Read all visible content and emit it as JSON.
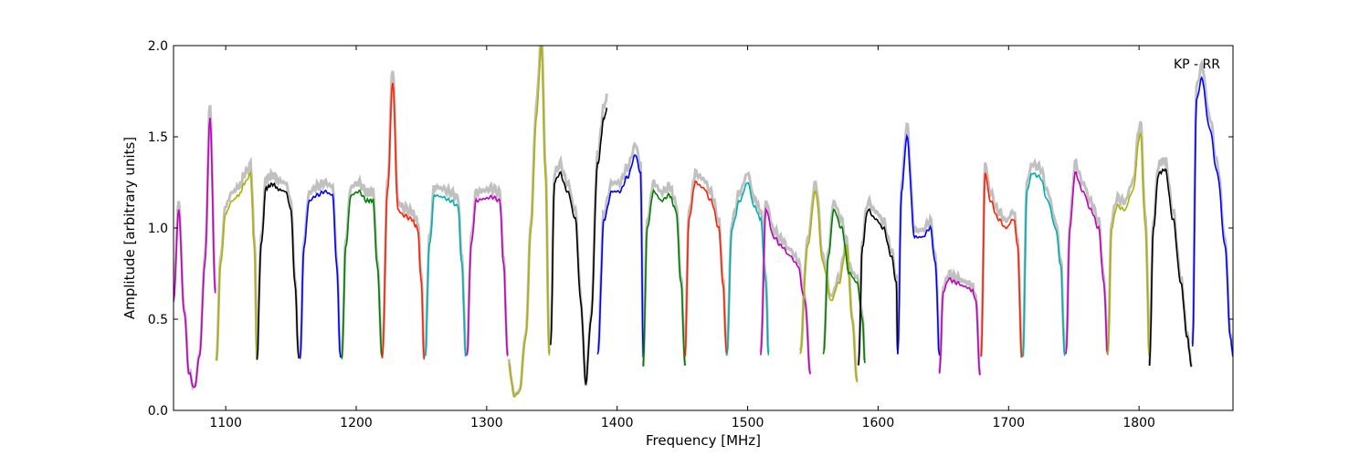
{
  "chart_data": {
    "type": "line",
    "title": "",
    "annotation": "KP - RR",
    "xlabel": "Frequency [MHz]",
    "ylabel": "Amplitude [arbitrary units]",
    "xlim": [
      1060,
      1872
    ],
    "ylim": [
      0.0,
      2.0
    ],
    "x_ticks": [
      1100,
      1200,
      1300,
      1400,
      1500,
      1600,
      1700,
      1800
    ],
    "y_ticks": [
      0.0,
      0.5,
      1.0,
      1.5,
      2.0
    ],
    "y_tick_labels": [
      "0.0",
      "0.5",
      "1.0",
      "1.5",
      "2.0"
    ],
    "grid": false,
    "background_color": "#c0c0c0",
    "band_colors": [
      "#0000ff",
      "#008000",
      "#ff2000",
      "#00b0b0",
      "#bf00bf",
      "#b0b000",
      "#000000"
    ],
    "bands": [
      {
        "range": [
          1060,
          1092
        ],
        "color": "#bf00bf",
        "x": [
          1060,
          1064,
          1068,
          1072,
          1076,
          1080,
          1084,
          1088,
          1092
        ],
        "y": [
          0.6,
          1.1,
          0.55,
          0.2,
          0.12,
          0.3,
          0.8,
          1.6,
          0.65
        ]
      },
      {
        "range": [
          1093,
          1124
        ],
        "color": "#b0b000",
        "x": [
          1093,
          1096,
          1100,
          1105,
          1110,
          1115,
          1119,
          1122,
          1124
        ],
        "y": [
          0.28,
          0.8,
          1.08,
          1.15,
          1.18,
          1.25,
          1.3,
          0.9,
          0.28
        ]
      },
      {
        "range": [
          1124,
          1156
        ],
        "color": "#000000",
        "x": [
          1124,
          1127,
          1131,
          1136,
          1141,
          1146,
          1150,
          1153,
          1156
        ],
        "y": [
          0.28,
          0.9,
          1.22,
          1.24,
          1.21,
          1.2,
          1.1,
          0.7,
          0.28
        ]
      },
      {
        "range": [
          1157,
          1188
        ],
        "color": "#0000ff",
        "x": [
          1157,
          1160,
          1164,
          1170,
          1176,
          1182,
          1185,
          1188
        ],
        "y": [
          0.28,
          0.9,
          1.15,
          1.18,
          1.2,
          1.18,
          0.8,
          0.28
        ]
      },
      {
        "range": [
          1189,
          1220
        ],
        "color": "#008000",
        "x": [
          1189,
          1192,
          1196,
          1202,
          1208,
          1213,
          1216,
          1220
        ],
        "y": [
          0.28,
          0.9,
          1.18,
          1.2,
          1.15,
          1.15,
          0.8,
          0.28
        ]
      },
      {
        "range": [
          1220,
          1252
        ],
        "color": "#ff2000",
        "x": [
          1220,
          1224,
          1228,
          1232,
          1236,
          1242,
          1247,
          1250,
          1252
        ],
        "y": [
          0.28,
          1.2,
          1.8,
          1.1,
          1.07,
          1.05,
          1.0,
          0.7,
          0.28
        ]
      },
      {
        "range": [
          1253,
          1284
        ],
        "color": "#00b0b0",
        "x": [
          1253,
          1256,
          1260,
          1266,
          1272,
          1278,
          1281,
          1284
        ],
        "y": [
          0.3,
          0.9,
          1.18,
          1.17,
          1.15,
          1.12,
          0.8,
          0.3
        ]
      },
      {
        "range": [
          1285,
          1316
        ],
        "color": "#bf00bf",
        "x": [
          1285,
          1288,
          1292,
          1298,
          1304,
          1310,
          1313,
          1316
        ],
        "y": [
          0.3,
          0.9,
          1.15,
          1.16,
          1.17,
          1.15,
          0.8,
          0.3
        ]
      },
      {
        "range": [
          1317,
          1348
        ],
        "color": "#b0b000",
        "x": [
          1317,
          1321,
          1325,
          1330,
          1334,
          1338,
          1342,
          1345,
          1348
        ],
        "y": [
          0.25,
          0.08,
          0.1,
          0.4,
          1.0,
          1.6,
          2.0,
          1.3,
          0.3
        ]
      },
      {
        "range": [
          1349,
          1392
        ],
        "color": "#000000",
        "x": [
          1349,
          1352,
          1356,
          1362,
          1368,
          1372,
          1376,
          1380,
          1385,
          1390,
          1392
        ],
        "y": [
          0.35,
          1.25,
          1.3,
          1.2,
          1.05,
          0.6,
          0.15,
          0.5,
          1.35,
          1.6,
          1.65
        ]
      },
      {
        "range": [
          1385,
          1420
        ],
        "color": "#0000ff",
        "x": [
          1385,
          1390,
          1396,
          1402,
          1408,
          1414,
          1418,
          1420
        ],
        "y": [
          0.3,
          1.05,
          1.2,
          1.2,
          1.28,
          1.4,
          1.3,
          0.3
        ]
      },
      {
        "range": [
          1420,
          1452
        ],
        "color": "#008000",
        "x": [
          1420,
          1423,
          1428,
          1434,
          1440,
          1445,
          1449,
          1452
        ],
        "y": [
          0.25,
          1.0,
          1.2,
          1.15,
          1.18,
          1.1,
          0.7,
          0.25
        ]
      },
      {
        "range": [
          1452,
          1484
        ],
        "color": "#ff2000",
        "x": [
          1452,
          1455,
          1460,
          1466,
          1472,
          1478,
          1481,
          1484
        ],
        "y": [
          0.3,
          1.05,
          1.25,
          1.22,
          1.15,
          1.0,
          0.7,
          0.3
        ]
      },
      {
        "range": [
          1484,
          1516
        ],
        "color": "#00b0b0",
        "x": [
          1484,
          1488,
          1494,
          1500,
          1505,
          1510,
          1514,
          1516
        ],
        "y": [
          0.3,
          1.0,
          1.15,
          1.25,
          1.12,
          1.05,
          0.7,
          0.3
        ]
      },
      {
        "range": [
          1510,
          1548
        ],
        "color": "#bf00bf",
        "x": [
          1510,
          1514,
          1520,
          1526,
          1532,
          1538,
          1544,
          1548
        ],
        "y": [
          0.3,
          1.1,
          0.95,
          0.9,
          0.85,
          0.8,
          0.6,
          0.2
        ]
      },
      {
        "range": [
          1540,
          1584
        ],
        "color": "#b0b000",
        "x": [
          1540,
          1546,
          1552,
          1558,
          1564,
          1570,
          1576,
          1580,
          1584
        ],
        "y": [
          0.3,
          0.9,
          1.2,
          0.8,
          0.6,
          0.7,
          0.9,
          0.5,
          0.15
        ]
      },
      {
        "range": [
          1558,
          1590
        ],
        "color": "#008000",
        "x": [
          1558,
          1562,
          1566,
          1572,
          1578,
          1584,
          1588,
          1590
        ],
        "y": [
          0.3,
          0.85,
          1.1,
          1.0,
          0.75,
          0.7,
          0.5,
          0.25
        ]
      },
      {
        "range": [
          1585,
          1615
        ],
        "color": "#000000",
        "x": [
          1585,
          1588,
          1592,
          1598,
          1604,
          1610,
          1614,
          1615
        ],
        "y": [
          0.25,
          0.9,
          1.1,
          1.05,
          1.0,
          0.85,
          0.7,
          0.3
        ]
      },
      {
        "range": [
          1615,
          1647
        ],
        "color": "#0000ff",
        "x": [
          1615,
          1618,
          1622,
          1628,
          1634,
          1640,
          1644,
          1647
        ],
        "y": [
          0.3,
          1.2,
          1.5,
          0.95,
          0.95,
          1.0,
          0.8,
          0.3
        ]
      },
      {
        "range": [
          1647,
          1678
        ],
        "color": "#bf00bf",
        "x": [
          1647,
          1650,
          1654,
          1660,
          1666,
          1672,
          1675,
          1678
        ],
        "y": [
          0.2,
          0.65,
          0.72,
          0.7,
          0.68,
          0.66,
          0.6,
          0.2
        ]
      },
      {
        "range": [
          1679,
          1710
        ],
        "color": "#ff2000",
        "x": [
          1679,
          1682,
          1686,
          1692,
          1698,
          1704,
          1707,
          1710
        ],
        "y": [
          0.3,
          1.3,
          1.15,
          1.05,
          1.0,
          1.05,
          0.9,
          0.3
        ]
      },
      {
        "range": [
          1711,
          1743
        ],
        "color": "#00b0b0",
        "x": [
          1711,
          1714,
          1718,
          1724,
          1730,
          1736,
          1740,
          1743
        ],
        "y": [
          0.3,
          1.2,
          1.3,
          1.28,
          1.15,
          1.0,
          0.8,
          0.3
        ]
      },
      {
        "range": [
          1744,
          1776
        ],
        "color": "#bf00bf",
        "x": [
          1744,
          1747,
          1751,
          1757,
          1763,
          1769,
          1773,
          1776
        ],
        "y": [
          0.3,
          1.0,
          1.3,
          1.2,
          1.1,
          1.0,
          0.7,
          0.3
        ]
      },
      {
        "range": [
          1776,
          1808
        ],
        "color": "#b0b000",
        "x": [
          1776,
          1779,
          1783,
          1789,
          1795,
          1801,
          1805,
          1808
        ],
        "y": [
          0.3,
          1.0,
          1.12,
          1.1,
          1.2,
          1.52,
          1.0,
          0.3
        ]
      },
      {
        "range": [
          1808,
          1840
        ],
        "color": "#000000",
        "x": [
          1808,
          1811,
          1815,
          1820,
          1826,
          1832,
          1837,
          1840
        ],
        "y": [
          0.25,
          1.0,
          1.3,
          1.32,
          1.05,
          0.7,
          0.4,
          0.25
        ]
      },
      {
        "range": [
          1841,
          1872
        ],
        "color": "#0000ff",
        "x": [
          1841,
          1844,
          1848,
          1854,
          1860,
          1866,
          1870,
          1872
        ],
        "y": [
          0.35,
          1.7,
          1.82,
          1.55,
          1.3,
          0.9,
          0.4,
          0.3
        ]
      }
    ]
  }
}
